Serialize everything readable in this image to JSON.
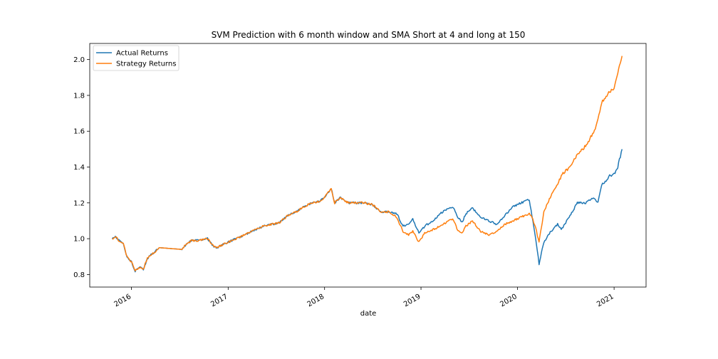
{
  "chart_data": {
    "type": "line",
    "title": "SVM Prediction with 6 month window and SMA Short at 4 and long at 150",
    "xlabel": "date",
    "ylabel": "",
    "x_ticks": [
      "2016",
      "2017",
      "2018",
      "2019",
      "2020",
      "2021"
    ],
    "y_ticks": [
      "0.8",
      "1.0",
      "1.2",
      "1.4",
      "1.6",
      "1.8",
      "2.0"
    ],
    "xlim": [
      "2015-07-27",
      "2021-05-02"
    ],
    "ylim": [
      0.73,
      2.09
    ],
    "grid": false,
    "legend_position": "top-left",
    "series": [
      {
        "name": "Actual Returns",
        "color": "#1f77b4",
        "points": [
          [
            "2015-10-20",
            1.0
          ],
          [
            "2015-11-01",
            1.01
          ],
          [
            "2015-11-15",
            0.99
          ],
          [
            "2015-12-01",
            0.97
          ],
          [
            "2015-12-15",
            0.9
          ],
          [
            "2016-01-01",
            0.87
          ],
          [
            "2016-01-15",
            0.82
          ],
          [
            "2016-02-01",
            0.84
          ],
          [
            "2016-02-15",
            0.83
          ],
          [
            "2016-03-01",
            0.89
          ],
          [
            "2016-03-15",
            0.91
          ],
          [
            "2016-04-01",
            0.93
          ],
          [
            "2016-04-15",
            0.95
          ],
          [
            "2016-07-10",
            0.94
          ],
          [
            "2016-07-20",
            0.96
          ],
          [
            "2016-08-15",
            0.99
          ],
          [
            "2016-09-15",
            0.99
          ],
          [
            "2016-10-15",
            1.0
          ],
          [
            "2016-11-05",
            0.96
          ],
          [
            "2016-11-20",
            0.95
          ],
          [
            "2016-12-15",
            0.97
          ],
          [
            "2017-01-15",
            0.99
          ],
          [
            "2017-02-15",
            1.01
          ],
          [
            "2017-03-15",
            1.03
          ],
          [
            "2017-04-15",
            1.05
          ],
          [
            "2017-05-15",
            1.07
          ],
          [
            "2017-06-15",
            1.08
          ],
          [
            "2017-07-15",
            1.09
          ],
          [
            "2017-08-15",
            1.13
          ],
          [
            "2017-09-15",
            1.15
          ],
          [
            "2017-10-15",
            1.18
          ],
          [
            "2017-11-15",
            1.2
          ],
          [
            "2017-12-15",
            1.21
          ],
          [
            "2018-01-01",
            1.23
          ],
          [
            "2018-01-26",
            1.28
          ],
          [
            "2018-02-08",
            1.2
          ],
          [
            "2018-03-01",
            1.23
          ],
          [
            "2018-04-01",
            1.2
          ],
          [
            "2018-05-01",
            1.2
          ],
          [
            "2018-06-01",
            1.2
          ],
          [
            "2018-07-01",
            1.19
          ],
          [
            "2018-08-01",
            1.15
          ],
          [
            "2018-09-01",
            1.15
          ],
          [
            "2018-10-01",
            1.14
          ],
          [
            "2018-10-25",
            1.07
          ],
          [
            "2018-11-15",
            1.08
          ],
          [
            "2018-12-01",
            1.11
          ],
          [
            "2018-12-24",
            1.03
          ],
          [
            "2019-01-15",
            1.07
          ],
          [
            "2019-02-15",
            1.1
          ],
          [
            "2019-03-15",
            1.14
          ],
          [
            "2019-04-15",
            1.17
          ],
          [
            "2019-05-01",
            1.18
          ],
          [
            "2019-05-20",
            1.12
          ],
          [
            "2019-06-05",
            1.09
          ],
          [
            "2019-06-20",
            1.14
          ],
          [
            "2019-07-15",
            1.17
          ],
          [
            "2019-08-15",
            1.12
          ],
          [
            "2019-09-15",
            1.1
          ],
          [
            "2019-10-15",
            1.08
          ],
          [
            "2019-11-15",
            1.13
          ],
          [
            "2019-12-15",
            1.18
          ],
          [
            "2020-01-15",
            1.2
          ],
          [
            "2020-02-15",
            1.22
          ],
          [
            "2020-02-25",
            1.13
          ],
          [
            "2020-03-10",
            1.0
          ],
          [
            "2020-03-23",
            0.86
          ],
          [
            "2020-04-10",
            0.98
          ],
          [
            "2020-05-01",
            1.03
          ],
          [
            "2020-06-01",
            1.08
          ],
          [
            "2020-06-15",
            1.05
          ],
          [
            "2020-07-15",
            1.12
          ],
          [
            "2020-08-15",
            1.2
          ],
          [
            "2020-09-15",
            1.2
          ],
          [
            "2020-10-15",
            1.23
          ],
          [
            "2020-11-01",
            1.2
          ],
          [
            "2020-11-15",
            1.3
          ],
          [
            "2020-12-15",
            1.35
          ],
          [
            "2021-01-01",
            1.36
          ],
          [
            "2021-01-15",
            1.4
          ],
          [
            "2021-01-31",
            1.5
          ]
        ]
      },
      {
        "name": "Strategy Returns",
        "color": "#ff7f0e",
        "points": [
          [
            "2015-10-20",
            1.0
          ],
          [
            "2015-11-01",
            1.01
          ],
          [
            "2015-11-15",
            0.99
          ],
          [
            "2015-12-01",
            0.97
          ],
          [
            "2015-12-15",
            0.9
          ],
          [
            "2016-01-01",
            0.87
          ],
          [
            "2016-01-15",
            0.82
          ],
          [
            "2016-02-01",
            0.84
          ],
          [
            "2016-02-15",
            0.83
          ],
          [
            "2016-03-01",
            0.89
          ],
          [
            "2016-03-15",
            0.91
          ],
          [
            "2016-04-01",
            0.93
          ],
          [
            "2016-04-15",
            0.95
          ],
          [
            "2016-07-10",
            0.94
          ],
          [
            "2016-07-20",
            0.96
          ],
          [
            "2016-08-15",
            0.99
          ],
          [
            "2016-09-15",
            0.99
          ],
          [
            "2016-10-15",
            1.0
          ],
          [
            "2016-11-05",
            0.96
          ],
          [
            "2016-11-20",
            0.95
          ],
          [
            "2016-12-15",
            0.97
          ],
          [
            "2017-01-15",
            0.99
          ],
          [
            "2017-02-15",
            1.01
          ],
          [
            "2017-03-15",
            1.03
          ],
          [
            "2017-04-15",
            1.05
          ],
          [
            "2017-05-15",
            1.07
          ],
          [
            "2017-06-15",
            1.08
          ],
          [
            "2017-07-15",
            1.09
          ],
          [
            "2017-08-15",
            1.13
          ],
          [
            "2017-09-15",
            1.15
          ],
          [
            "2017-10-15",
            1.18
          ],
          [
            "2017-11-15",
            1.2
          ],
          [
            "2017-12-15",
            1.21
          ],
          [
            "2018-01-01",
            1.23
          ],
          [
            "2018-01-26",
            1.28
          ],
          [
            "2018-02-08",
            1.2
          ],
          [
            "2018-03-01",
            1.23
          ],
          [
            "2018-04-01",
            1.2
          ],
          [
            "2018-05-01",
            1.2
          ],
          [
            "2018-06-01",
            1.2
          ],
          [
            "2018-07-01",
            1.19
          ],
          [
            "2018-08-01",
            1.15
          ],
          [
            "2018-09-01",
            1.15
          ],
          [
            "2018-10-01",
            1.12
          ],
          [
            "2018-10-25",
            1.04
          ],
          [
            "2018-11-15",
            1.02
          ],
          [
            "2018-12-01",
            1.04
          ],
          [
            "2018-12-24",
            0.98
          ],
          [
            "2019-01-15",
            1.03
          ],
          [
            "2019-02-15",
            1.05
          ],
          [
            "2019-03-15",
            1.07
          ],
          [
            "2019-04-15",
            1.1
          ],
          [
            "2019-05-01",
            1.11
          ],
          [
            "2019-05-20",
            1.05
          ],
          [
            "2019-06-05",
            1.03
          ],
          [
            "2019-06-20",
            1.07
          ],
          [
            "2019-07-15",
            1.1
          ],
          [
            "2019-08-15",
            1.04
          ],
          [
            "2019-09-15",
            1.02
          ],
          [
            "2019-10-15",
            1.04
          ],
          [
            "2019-11-15",
            1.08
          ],
          [
            "2019-12-15",
            1.1
          ],
          [
            "2020-01-15",
            1.12
          ],
          [
            "2020-02-15",
            1.14
          ],
          [
            "2020-02-25",
            1.12
          ],
          [
            "2020-03-10",
            1.06
          ],
          [
            "2020-03-23",
            0.98
          ],
          [
            "2020-04-10",
            1.15
          ],
          [
            "2020-05-01",
            1.22
          ],
          [
            "2020-06-01",
            1.31
          ],
          [
            "2020-06-15",
            1.35
          ],
          [
            "2020-07-15",
            1.4
          ],
          [
            "2020-08-15",
            1.47
          ],
          [
            "2020-09-15",
            1.52
          ],
          [
            "2020-10-15",
            1.59
          ],
          [
            "2020-11-01",
            1.66
          ],
          [
            "2020-11-15",
            1.76
          ],
          [
            "2020-12-15",
            1.82
          ],
          [
            "2021-01-01",
            1.84
          ],
          [
            "2021-01-15",
            1.92
          ],
          [
            "2021-01-31",
            2.02
          ]
        ]
      }
    ]
  }
}
